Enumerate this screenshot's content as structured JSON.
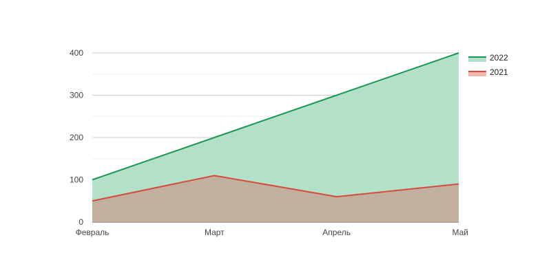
{
  "chart_data": {
    "type": "area",
    "categories": [
      "Февраль",
      "Март",
      "Апрель",
      "Май"
    ],
    "series": [
      {
        "name": "2022",
        "values": [
          100,
          200,
          300,
          400
        ],
        "color": "#1a9850",
        "fill": "#b3e0c8"
      },
      {
        "name": "2021",
        "values": [
          50,
          110,
          60,
          90
        ],
        "color": "#d64a3b",
        "fill": "#f2b8b0"
      }
    ],
    "overlap_fill": "#c2b09f",
    "y_ticks": [
      0,
      100,
      200,
      300,
      400
    ],
    "ylim": [
      0,
      400
    ],
    "grid": true,
    "legend_position": "right"
  }
}
